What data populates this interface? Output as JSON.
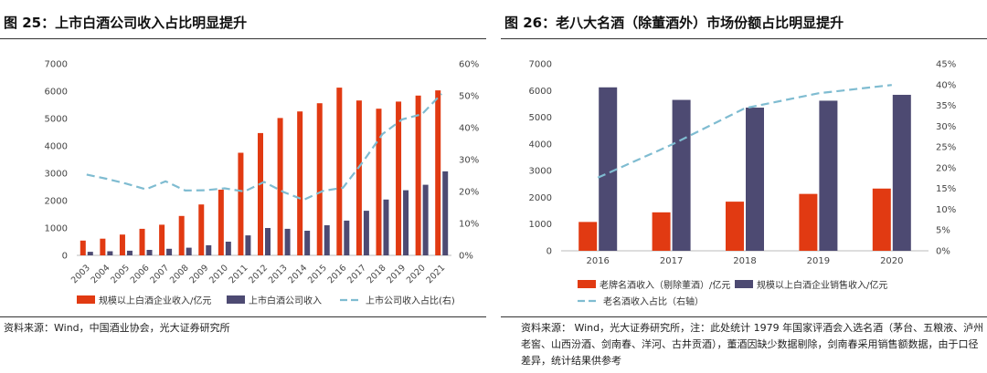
{
  "chart_data": [
    {
      "type": "bar",
      "title": "图 25：上市白酒公司收入占比明显提升",
      "source": "资料来源：Wind，中国酒业协会，光大证券研究所",
      "categories": [
        "2003",
        "2004",
        "2005",
        "2006",
        "2007",
        "2008",
        "2009",
        "2010",
        "2011",
        "2012",
        "2013",
        "2014",
        "2015",
        "2016",
        "2017",
        "2018",
        "2019",
        "2020",
        "2021"
      ],
      "series": [
        {
          "name": "规模以上白酒企业收入/亿元",
          "type": "bar",
          "axis": "left",
          "color": "#e13a12",
          "values": [
            540,
            610,
            760,
            970,
            1120,
            1440,
            1860,
            2400,
            3750,
            4470,
            5020,
            5260,
            5560,
            6130,
            5660,
            5360,
            5620,
            5840,
            6030
          ]
        },
        {
          "name": "上市白酒公司收入",
          "type": "bar",
          "axis": "left",
          "color": "#4d4a72",
          "values": [
            130,
            150,
            170,
            200,
            240,
            280,
            370,
            500,
            730,
            1000,
            970,
            900,
            1100,
            1270,
            1630,
            2040,
            2380,
            2580,
            3070
          ]
        },
        {
          "name": "上市公司收入占比(右)",
          "type": "line",
          "axis": "right",
          "color": "#7fbcd1",
          "dashed": true,
          "values": [
            25.3,
            24.0,
            22.5,
            20.7,
            23.2,
            20.3,
            20.4,
            21.0,
            20.0,
            23.0,
            19.8,
            17.4,
            20.2,
            21.2,
            29.2,
            38.0,
            42.6,
            44.2,
            50.6
          ]
        }
      ],
      "left_axis": {
        "min": 0,
        "max": 7000,
        "ticks": [
          "0",
          "1000",
          "2000",
          "3000",
          "4000",
          "5000",
          "6000",
          "7000"
        ]
      },
      "right_axis": {
        "min": 0,
        "max": 60,
        "ticks": [
          "0%",
          "10%",
          "20%",
          "30%",
          "40%",
          "50%",
          "60%"
        ]
      },
      "legend": "bottom"
    },
    {
      "type": "bar",
      "title": "图 26：老八大名酒（除董酒外）市场份额占比明显提升",
      "source": "资料来源： Wind，光大证券研究所，注：此处统计 1979 年国家评酒会入选名酒（茅台、五粮液、泸州老窖、山西汾酒、剑南春、洋河、古井贡酒），董酒因缺少数据剔除，剑南春采用销售额数据，由于口径差异，统计结果供参考",
      "categories": [
        "2016",
        "2017",
        "2018",
        "2019",
        "2020"
      ],
      "series": [
        {
          "name": "老牌名酒收入（剔除董酒）/亿元",
          "type": "bar",
          "axis": "left",
          "color": "#e13a12",
          "values": [
            1080,
            1440,
            1840,
            2130,
            2330
          ]
        },
        {
          "name": "规模以上白酒企业销售收入/亿元",
          "type": "bar",
          "axis": "left",
          "color": "#4d4a72",
          "values": [
            6120,
            5650,
            5360,
            5620,
            5840
          ]
        },
        {
          "name": "老名酒收入占比（右轴）",
          "type": "line",
          "axis": "right",
          "color": "#7fbcd1",
          "dashed": true,
          "values": [
            17.6,
            25.5,
            34.3,
            37.9,
            39.9
          ]
        }
      ],
      "left_axis": {
        "min": 0,
        "max": 7000,
        "ticks": [
          "0",
          "1000",
          "2000",
          "3000",
          "4000",
          "5000",
          "6000",
          "7000"
        ]
      },
      "right_axis": {
        "min": 0,
        "max": 45,
        "ticks": [
          "0%",
          "5%",
          "10%",
          "15%",
          "20%",
          "25%",
          "30%",
          "35%",
          "40%",
          "45%"
        ]
      },
      "legend": "bottom"
    }
  ]
}
